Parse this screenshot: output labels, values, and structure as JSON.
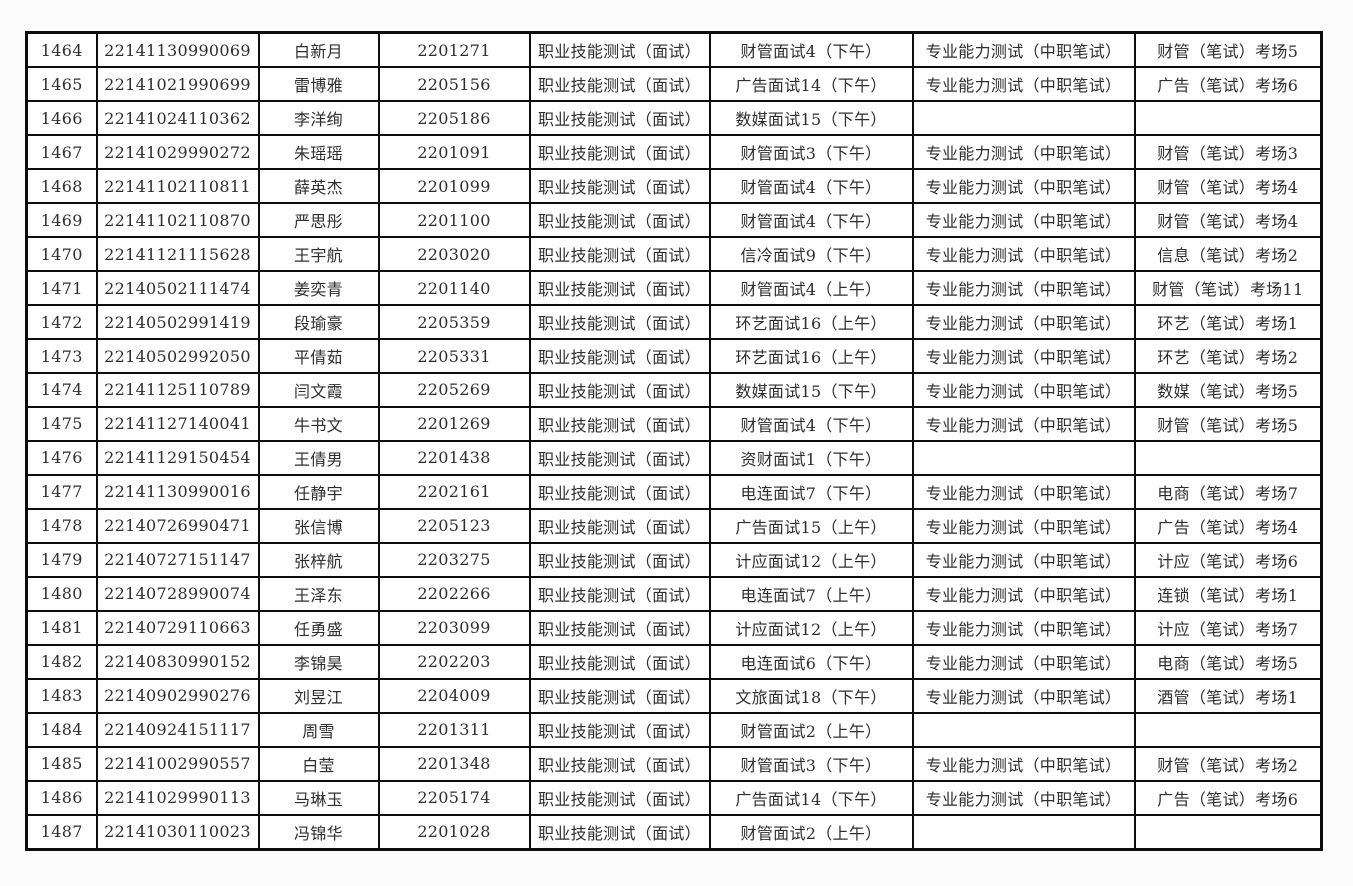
{
  "page": {
    "background_color": "#fcfcfc",
    "table_border_color": "#0d0d0d",
    "table_text_color": "#2e2e2e"
  },
  "table": {
    "rows": [
      [
        "1464",
        "22141130990069",
        "白新月",
        "2201271",
        "职业技能测试（面试）",
        "财管面试4（下午）",
        "专业能力测试（中职笔试）",
        "财管（笔试）考场5"
      ],
      [
        "1465",
        "22141021990699",
        "雷博雅",
        "2205156",
        "职业技能测试（面试）",
        "广告面试14（下午）",
        "专业能力测试（中职笔试）",
        "广告（笔试）考场6"
      ],
      [
        "1466",
        "22141024110362",
        "李洋绚",
        "2205186",
        "职业技能测试（面试）",
        "数媒面试15（下午）",
        "",
        ""
      ],
      [
        "1467",
        "22141029990272",
        "朱瑶瑶",
        "2201091",
        "职业技能测试（面试）",
        "财管面试3（下午）",
        "专业能力测试（中职笔试）",
        "财管（笔试）考场3"
      ],
      [
        "1468",
        "22141102110811",
        "薛英杰",
        "2201099",
        "职业技能测试（面试）",
        "财管面试4（下午）",
        "专业能力测试（中职笔试）",
        "财管（笔试）考场4"
      ],
      [
        "1469",
        "22141102110870",
        "严思彤",
        "2201100",
        "职业技能测试（面试）",
        "财管面试4（下午）",
        "专业能力测试（中职笔试）",
        "财管（笔试）考场4"
      ],
      [
        "1470",
        "22141121115628",
        "王宇航",
        "2203020",
        "职业技能测试（面试）",
        "信冷面试9（下午）",
        "专业能力测试（中职笔试）",
        "信息（笔试）考场2"
      ],
      [
        "1471",
        "22140502111474",
        "姜奕青",
        "2201140",
        "职业技能测试（面试）",
        "财管面试4（上午）",
        "专业能力测试（中职笔试）",
        "财管（笔试）考场11"
      ],
      [
        "1472",
        "22140502991419",
        "段瑜豪",
        "2205359",
        "职业技能测试（面试）",
        "环艺面试16（上午）",
        "专业能力测试（中职笔试）",
        "环艺（笔试）考场1"
      ],
      [
        "1473",
        "22140502992050",
        "平倩茹",
        "2205331",
        "职业技能测试（面试）",
        "环艺面试16（上午）",
        "专业能力测试（中职笔试）",
        "环艺（笔试）考场2"
      ],
      [
        "1474",
        "22141125110789",
        "闫文霞",
        "2205269",
        "职业技能测试（面试）",
        "数媒面试15（下午）",
        "专业能力测试（中职笔试）",
        "数媒（笔试）考场5"
      ],
      [
        "1475",
        "22141127140041",
        "牛书文",
        "2201269",
        "职业技能测试（面试）",
        "财管面试4（下午）",
        "专业能力测试（中职笔试）",
        "财管（笔试）考场5"
      ],
      [
        "1476",
        "22141129150454",
        "王倩男",
        "2201438",
        "职业技能测试（面试）",
        "资财面试1（下午）",
        "",
        ""
      ],
      [
        "1477",
        "22141130990016",
        "任静宇",
        "2202161",
        "职业技能测试（面试）",
        "电连面试7（下午）",
        "专业能力测试（中职笔试）",
        "电商（笔试）考场7"
      ],
      [
        "1478",
        "22140726990471",
        "张信博",
        "2205123",
        "职业技能测试（面试）",
        "广告面试15（上午）",
        "专业能力测试（中职笔试）",
        "广告（笔试）考场4"
      ],
      [
        "1479",
        "22140727151147",
        "张梓航",
        "2203275",
        "职业技能测试（面试）",
        "计应面试12（上午）",
        "专业能力测试（中职笔试）",
        "计应（笔试）考场6"
      ],
      [
        "1480",
        "22140728990074",
        "王泽东",
        "2202266",
        "职业技能测试（面试）",
        "电连面试7（上午）",
        "专业能力测试（中职笔试）",
        "连锁（笔试）考场1"
      ],
      [
        "1481",
        "22140729110663",
        "任勇盛",
        "2203099",
        "职业技能测试（面试）",
        "计应面试12（上午）",
        "专业能力测试（中职笔试）",
        "计应（笔试）考场7"
      ],
      [
        "1482",
        "22140830990152",
        "李锦昊",
        "2202203",
        "职业技能测试（面试）",
        "电连面试6（下午）",
        "专业能力测试（中职笔试）",
        "电商（笔试）考场5"
      ],
      [
        "1483",
        "22140902990276",
        "刘昱江",
        "2204009",
        "职业技能测试（面试）",
        "文旅面试18（下午）",
        "专业能力测试（中职笔试）",
        "酒管（笔试）考场1"
      ],
      [
        "1484",
        "22140924151117",
        "周雪",
        "2201311",
        "职业技能测试（面试）",
        "财管面试2（上午）",
        "",
        ""
      ],
      [
        "1485",
        "22141002990557",
        "白莹",
        "2201348",
        "职业技能测试（面试）",
        "财管面试3（下午）",
        "专业能力测试（中职笔试）",
        "财管（笔试）考场2"
      ],
      [
        "1486",
        "22141029990113",
        "马琳玉",
        "2205174",
        "职业技能测试（面试）",
        "广告面试14（下午）",
        "专业能力测试（中职笔试）",
        "广告（笔试）考场6"
      ],
      [
        "1487",
        "22141030110023",
        "冯锦华",
        "2201028",
        "职业技能测试（面试）",
        "财管面试2（上午）",
        "",
        ""
      ]
    ]
  }
}
